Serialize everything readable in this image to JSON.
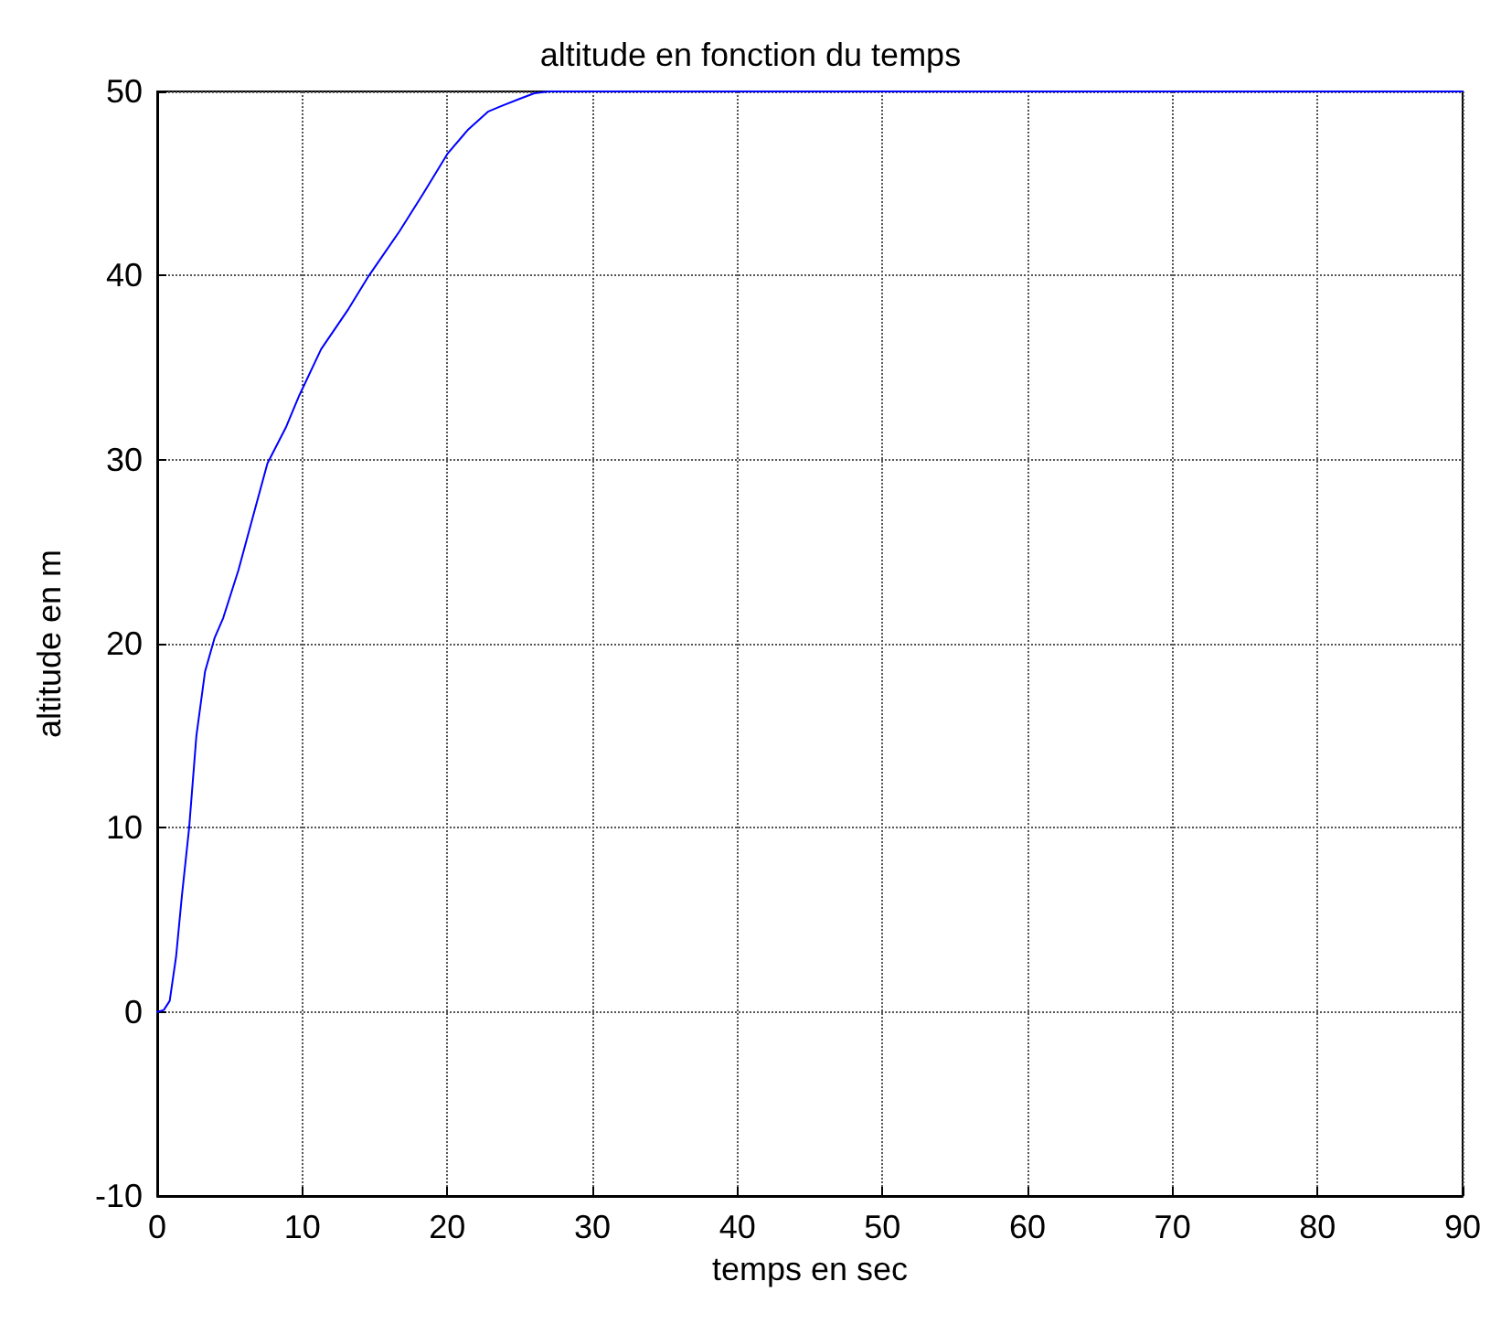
{
  "chart_data": {
    "type": "line",
    "title": "altitude en fonction du temps",
    "xlabel": "temps en sec",
    "ylabel": "altitude en m",
    "series": [
      {
        "color": "#0000ff",
        "x": [
          0,
          0.45,
          0.86,
          1.3,
          1.7,
          2.2,
          2.7,
          3.3,
          3.95,
          4.55,
          5.6,
          6.6,
          7.6,
          8.9,
          9.8,
          11.3,
          13.2,
          14.6,
          16.7,
          18.3,
          20,
          21.4,
          22.8,
          23.7,
          25,
          26,
          27,
          30,
          45,
          60,
          75,
          90
        ],
        "values": [
          0,
          0.1,
          0.6,
          3,
          6.3,
          10,
          15,
          18.5,
          20.3,
          21.4,
          24,
          26.9,
          29.8,
          31.8,
          33.5,
          36,
          38.2,
          40,
          42.4,
          44.4,
          46.6,
          47.9,
          48.9,
          49.2,
          49.6,
          49.9,
          50,
          50,
          50,
          50,
          50,
          50
        ]
      }
    ],
    "xlim": [
      0,
      90
    ],
    "xticks": [
      0,
      10,
      20,
      30,
      40,
      50,
      60,
      70,
      80,
      90
    ],
    "ylim": [
      -10,
      50
    ],
    "yticks": [
      -10,
      0,
      10,
      20,
      30,
      40,
      50
    ],
    "grid": true,
    "marker": "none",
    "line_style": "solid"
  }
}
